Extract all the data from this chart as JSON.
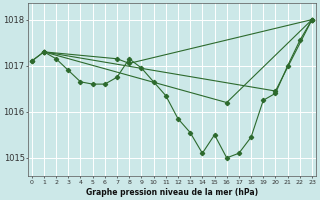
{
  "x": [
    0,
    1,
    2,
    3,
    4,
    5,
    6,
    7,
    8,
    9,
    10,
    11,
    12,
    13,
    14,
    15,
    16,
    17,
    18,
    19,
    20,
    21,
    22,
    23
  ],
  "line_main": [
    1017.1,
    1017.3,
    1017.15,
    1016.9,
    1016.65,
    1016.6,
    1016.6,
    1016.75,
    1017.15,
    1016.95,
    1016.65,
    1016.35,
    1015.85,
    1015.55,
    1015.1,
    1015.5,
    1015.0,
    1015.1,
    1015.45,
    1016.25,
    1016.4,
    1017.0,
    1017.55,
    1018.0
  ],
  "line_upper": [
    1017.1,
    1017.3,
    1017.15,
    1016.9,
    1016.65,
    1016.6,
    1016.6,
    1017.15,
    1017.05,
    null,
    null,
    null,
    null,
    null,
    null,
    null,
    null,
    null,
    null,
    null,
    null,
    null,
    null,
    1018.0
  ],
  "line_diag1": [
    1017.1,
    1017.3,
    null,
    null,
    null,
    null,
    null,
    null,
    null,
    null,
    null,
    null,
    null,
    null,
    null,
    null,
    null,
    null,
    null,
    null,
    1016.45,
    null,
    null,
    1018.0
  ],
  "line_diag2": [
    1017.1,
    1017.3,
    null,
    null,
    null,
    null,
    null,
    null,
    null,
    null,
    null,
    null,
    null,
    null,
    null,
    null,
    1016.2,
    null,
    null,
    null,
    null,
    null,
    null,
    1018.0
  ],
  "line_color": "#2d6a2d",
  "bg_color": "#cce8e8",
  "grid_color": "#ffffff",
  "xlabel": "Graphe pression niveau de la mer (hPa)",
  "ylim": [
    1014.6,
    1018.35
  ],
  "xlim": [
    -0.3,
    23.3
  ],
  "yticks": [
    1015,
    1016,
    1017,
    1018
  ],
  "xtick_labels": [
    "0",
    "1",
    "2",
    "3",
    "4",
    "5",
    "6",
    "7",
    "8",
    "9",
    "10",
    "11",
    "12",
    "13",
    "14",
    "15",
    "16",
    "17",
    "18",
    "19",
    "20",
    "21",
    "22",
    "23"
  ]
}
